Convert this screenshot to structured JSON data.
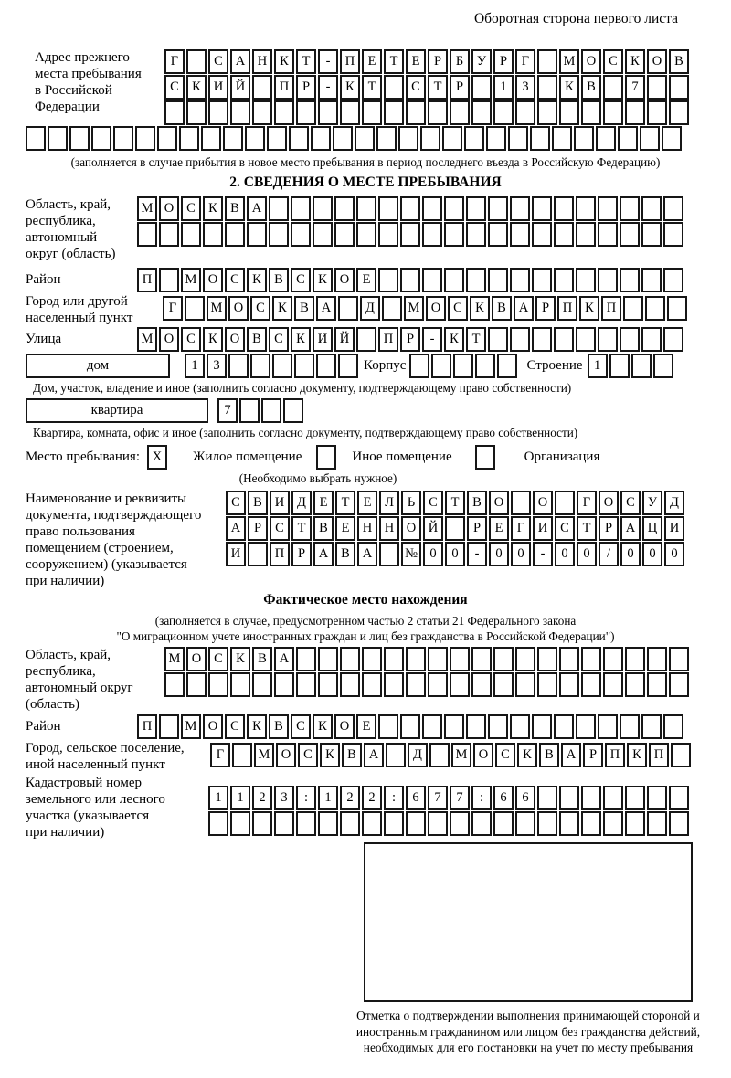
{
  "page_header": "Оборотная сторона первого листа",
  "prev_address": {
    "label": "Адрес прежнего\nместа пребывания\nв Российской\nФедерации",
    "rows": [
      {
        "count": 24,
        "value": "Г САНКТ-ПЕТЕРБУРГ МОСКОВ"
      },
      {
        "count": 24,
        "value": "СКИЙ ПР-КТ СТР 13 КВ 7"
      },
      {
        "count": 24,
        "value": ""
      }
    ],
    "overflow_row": {
      "count": 30,
      "value": ""
    },
    "note": "(заполняется в случае прибытия в новое место пребывания в период последнего въезда в Российскую Федерацию)"
  },
  "section2": {
    "title": "2. СВЕДЕНИЯ О МЕСТЕ ПРЕБЫВАНИЯ",
    "region": {
      "label": "Область, край,\nреспублика,\nавтономный\nокруг (область)",
      "rows": [
        {
          "count": 25,
          "value": "МОСКВА"
        },
        {
          "count": 25,
          "value": ""
        }
      ]
    },
    "district": {
      "label": "Район",
      "row": {
        "count": 25,
        "value": "П МОСКВСКОЕ"
      }
    },
    "city": {
      "label": "Город или другой\nнаселенный пункт",
      "row": {
        "count": 24,
        "value": "Г МОСКВА Д МОСКВАРПКП"
      }
    },
    "street": {
      "label": "Улица",
      "row": {
        "count": 25,
        "value": "МОСКОВСКИЙ ПР-КТ"
      }
    },
    "house": {
      "box_label": "дом",
      "cells": {
        "count": 8,
        "value": "13"
      },
      "korpus_label": "Корпус",
      "korpus_cells": {
        "count": 5,
        "value": ""
      },
      "stroenie_label": "Строение",
      "stroenie_cells": {
        "count": 4,
        "value": "1"
      },
      "note": "Дом, участок, владение и иное (заполнить согласно документу, подтверждающему право собственности)"
    },
    "apartment": {
      "box_label": "квартира",
      "cells": {
        "count": 4,
        "value": "7"
      },
      "note": "Квартира, комната, офис и иное (заполнить согласно документу, подтверждающему право собственности)"
    },
    "premises_type": {
      "label": "Место пребывания:",
      "options": [
        {
          "label": "Жилое помещение",
          "checked": "X"
        },
        {
          "label": "Иное помещение",
          "checked": ""
        },
        {
          "label": "Организация",
          "checked": ""
        }
      ],
      "note": "(Необходимо выбрать нужное)"
    },
    "document": {
      "label": "Наименование и реквизиты\nдокумента, подтверждающего\nправо пользования\nпомещением (строением,\nсооружением) (указывается\nпри наличии)",
      "rows": [
        {
          "count": 21,
          "value": "СВИДЕТЕЛЬСТВО О ГОСУД"
        },
        {
          "count": 21,
          "value": "АРСТВЕННОЙ РЕГИСТРАЦИ"
        },
        {
          "count": 21,
          "value": "И ПРАВА №00-00-00/000"
        }
      ]
    }
  },
  "actual_location": {
    "title": "Фактическое место нахождения",
    "note_line1": "(заполняется в случае, предусмотренном частью 2 статьи 21 Федерального закона",
    "note_line2": "\"О миграционном учете иностранных граждан и лиц без гражданства в Российской Федерации\")",
    "region": {
      "label": "Область, край,\nреспублика,\nавтономный округ\n(область)",
      "rows": [
        {
          "count": 24,
          "value": "МОСКВА"
        },
        {
          "count": 24,
          "value": ""
        }
      ]
    },
    "district": {
      "label": "Район",
      "row": {
        "count": 25,
        "value": "П МОСКВСКОЕ"
      }
    },
    "city": {
      "label": "Город, сельское поселение,\nиной населенный пункт",
      "row": {
        "count": 22,
        "value": "Г МОСКВА Д МОСКВАРПКП"
      }
    },
    "cadastral": {
      "label": "Кадастровый номер\nземельного или лесного\nучастка (указывается\nпри наличии)",
      "rows": [
        {
          "count": 22,
          "value": "1123:122:677:66"
        },
        {
          "count": 22,
          "value": ""
        }
      ]
    },
    "stamp_note": "Отметка о подтверждении выполнения принимающей стороной и иностранным гражданином или лицом без гражданства действий, необходимых для его постановки на учет по месту пребывания"
  }
}
